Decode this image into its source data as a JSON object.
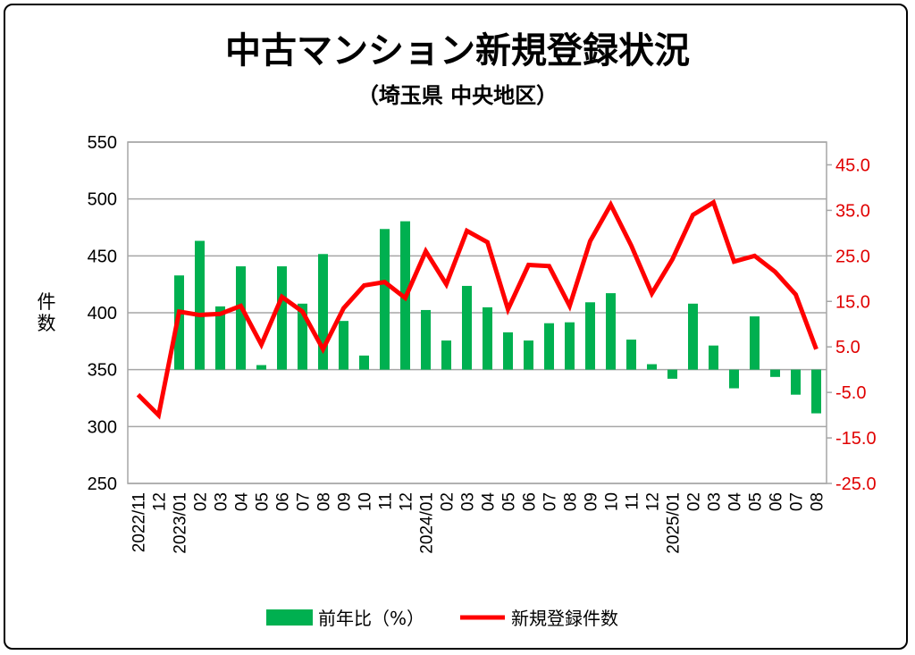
{
  "chart_data": {
    "type": "bar+line",
    "title": "中古マンション新規登録状況",
    "subtitle": "（埼玉県 中央地区）",
    "ylabel": "件数",
    "ylabel_right": "",
    "categories": [
      "2022/11",
      "12",
      "2023/01",
      "02",
      "03",
      "04",
      "05",
      "06",
      "07",
      "08",
      "09",
      "10",
      "11",
      "12",
      "2024/01",
      "02",
      "03",
      "04",
      "05",
      "06",
      "07",
      "08",
      "09",
      "10",
      "11",
      "12",
      "2025/01",
      "02",
      "03",
      "04",
      "05",
      "06",
      "07",
      "08"
    ],
    "ylim": [
      250,
      550
    ],
    "yticks": [
      "250",
      "300",
      "350",
      "400",
      "450",
      "500",
      "550"
    ],
    "ylim_right": [
      -25,
      50
    ],
    "yticks_right": [
      "-25.0",
      "-15.0",
      "-5.0",
      "5.0",
      "15.0",
      "25.0",
      "35.0",
      "45.0"
    ],
    "grid": true,
    "legend_position": "bottom",
    "series": [
      {
        "name": "前年比（%）",
        "type": "bar",
        "axis": "right",
        "color": "#00b050",
        "values": [
          null,
          null,
          20.7,
          28.3,
          13.9,
          22.7,
          1.0,
          22.7,
          14.5,
          25.4,
          10.7,
          3.1,
          30.9,
          32.6,
          13.1,
          6.4,
          18.4,
          13.7,
          8.2,
          6.4,
          10.2,
          10.4,
          14.8,
          16.8,
          6.6,
          1.2,
          -2.0,
          14.5,
          5.3,
          -4.1,
          11.7,
          -1.6,
          -5.5,
          -9.6
        ]
      },
      {
        "name": "新規登録件数",
        "type": "line",
        "axis": "left",
        "color": "#ff0000",
        "values": [
          328,
          310,
          401,
          398,
          399,
          406,
          372,
          414,
          401,
          368,
          404,
          424,
          427,
          413,
          454,
          425,
          472,
          462,
          403,
          442,
          441,
          406,
          463,
          495,
          459,
          417,
          447,
          486,
          497,
          445,
          450,
          436,
          416,
          368
        ]
      }
    ]
  }
}
